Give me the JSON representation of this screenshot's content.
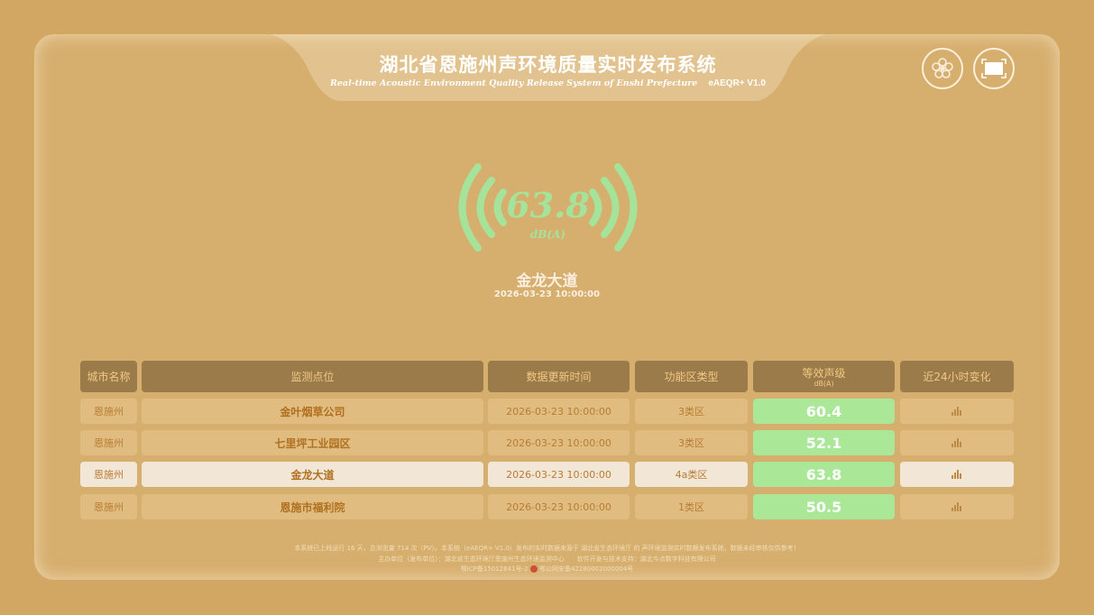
{
  "header": {
    "title": "湖北省恩施州声环境质量实时发布系统",
    "subtitle": "Real-time Acoustic Environment Quality Release System of Enshi Prefecture",
    "version": "eAEQR+ V1.0"
  },
  "toolbar": {
    "icons": [
      "flower-icon",
      "fullscreen-icon"
    ]
  },
  "current": {
    "value": "63.8",
    "unit": "dB(A)",
    "site": "金龙大道",
    "time": "2026-03-23 10:00:00"
  },
  "colors": {
    "background": "#d2a763",
    "level_green": "#aae898",
    "header_cell": "#9c7b4a"
  },
  "table": {
    "headers": [
      "城市名称",
      "监测点位",
      "数据更新时间",
      "功能区类型",
      "等效声级",
      "近24小时变化"
    ],
    "level_unit": "dB(A)",
    "rows": [
      {
        "city": "恩施州",
        "site": "金叶烟草公司",
        "time": "2026-03-23 10:00:00",
        "zone": "3类区",
        "level": "60.4"
      },
      {
        "city": "恩施州",
        "site": "七里坪工业园区",
        "time": "2026-03-23 10:00:00",
        "zone": "3类区",
        "level": "52.1"
      },
      {
        "city": "恩施州",
        "site": "金龙大道",
        "time": "2026-03-23 10:00:00",
        "zone": "4a类区",
        "level": "63.8",
        "selected": true
      },
      {
        "city": "恩施州",
        "site": "恩施市福利院",
        "time": "2026-03-23 10:00:00",
        "zone": "1类区",
        "level": "50.5"
      }
    ]
  },
  "footer": {
    "line1": "本系统已上线运行 16 天，总浏览量 714 次（PV）。本系统（eAEQR+ V1.0）发布的实时数据来源于 湖北省生态环境厅 的 声环境监测实时数据发布系统，数据未经审核仅供参考！",
    "line2": "主办单位（发布单位）：湖北省生态环境厅恩施州生态环境监测中心　　软件开发与技术支持：湖北今点数字科技有限公司",
    "icp": "鄂ICP备15012841号-2",
    "police": "鄂公网安备42280002000004号"
  }
}
